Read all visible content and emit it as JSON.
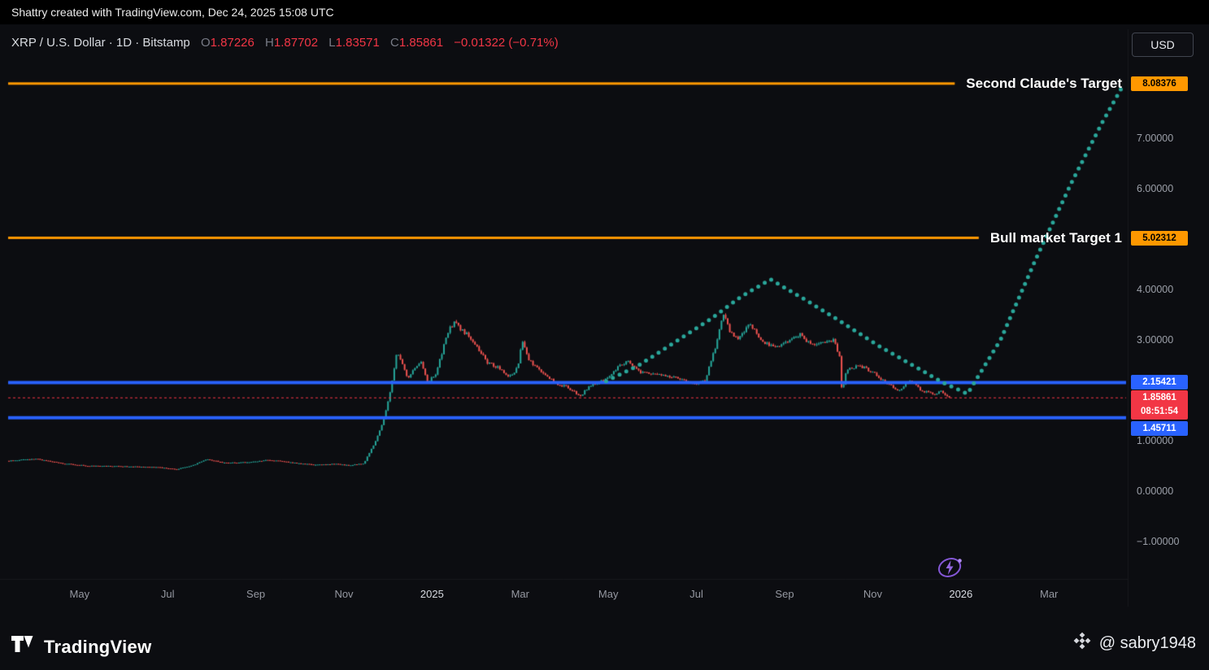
{
  "attribution": "Shattry created with TradingView.com, Dec 24, 2025 15:08 UTC",
  "header": {
    "symbol_line": "XRP / U.S. Dollar · 1D · Bitstamp",
    "ohlc": {
      "o_label": "O",
      "o": "1.87226",
      "h_label": "H",
      "h": "1.87702",
      "l_label": "L",
      "l": "1.83571",
      "c_label": "C",
      "c": "1.85861"
    },
    "change": "−0.01322 (−0.71%)",
    "currency_button": "USD"
  },
  "footer": {
    "logo_text": "TradingView",
    "credit": "@ sabry1948"
  },
  "chart_data": {
    "type": "candlestick",
    "symbol": "XRP/USD",
    "interval": "1D",
    "exchange": "Bitstamp",
    "x_unit": "months since 2024-04-01",
    "x_ticks": [
      {
        "label": "May",
        "t": 1,
        "major": false
      },
      {
        "label": "Jul",
        "t": 3,
        "major": false
      },
      {
        "label": "Sep",
        "t": 5,
        "major": false
      },
      {
        "label": "Nov",
        "t": 7,
        "major": false
      },
      {
        "label": "2025",
        "t": 9,
        "major": true
      },
      {
        "label": "Mar",
        "t": 11,
        "major": false
      },
      {
        "label": "May",
        "t": 13,
        "major": false
      },
      {
        "label": "Jul",
        "t": 15,
        "major": false
      },
      {
        "label": "Sep",
        "t": 17,
        "major": false
      },
      {
        "label": "Nov",
        "t": 19,
        "major": false
      },
      {
        "label": "2026",
        "t": 21,
        "major": true
      },
      {
        "label": "Mar",
        "t": 23,
        "major": false
      }
    ],
    "y_ticks": [
      {
        "label": "7.00000",
        "price": 7
      },
      {
        "label": "6.00000",
        "price": 6
      },
      {
        "label": "4.00000",
        "price": 4
      },
      {
        "label": "3.00000",
        "price": 3
      },
      {
        "label": "1.00000",
        "price": 1
      },
      {
        "label": "0.00000",
        "price": 0
      },
      {
        "label": "−1.00000",
        "price": -1
      }
    ],
    "levels": [
      {
        "name": "Second Claude's Target",
        "price": 8.08376,
        "label": "8.08376",
        "color": "#ff9800",
        "text_color": "#000000",
        "width": 3
      },
      {
        "name": "Bull market Target 1",
        "price": 5.02312,
        "label": "5.02312",
        "color": "#ff9800",
        "text_color": "#000000",
        "width": 3
      },
      {
        "name": "",
        "price": 2.15421,
        "label": "2.15421",
        "color": "#2962ff",
        "text_color": "#ffffff",
        "width": 4
      },
      {
        "name": "",
        "price": 1.45711,
        "label": "1.45711",
        "color": "#2962ff",
        "text_color": "#ffffff",
        "width": 4
      }
    ],
    "last_price": {
      "label": "1.85861",
      "price": 1.85861,
      "countdown": "08:51:54"
    },
    "price_path": [
      [
        -0.6,
        0.6
      ],
      [
        0.0,
        0.64
      ],
      [
        0.6,
        0.55
      ],
      [
        1.2,
        0.5
      ],
      [
        2.0,
        0.49
      ],
      [
        2.8,
        0.47
      ],
      [
        3.2,
        0.43
      ],
      [
        3.6,
        0.52
      ],
      [
        3.9,
        0.63
      ],
      [
        4.3,
        0.56
      ],
      [
        4.8,
        0.57
      ],
      [
        5.3,
        0.62
      ],
      [
        5.8,
        0.57
      ],
      [
        6.3,
        0.52
      ],
      [
        6.8,
        0.54
      ],
      [
        7.1,
        0.51
      ],
      [
        7.45,
        0.55
      ],
      [
        7.7,
        0.95
      ],
      [
        7.9,
        1.4
      ],
      [
        8.05,
        1.95
      ],
      [
        8.2,
        2.75
      ],
      [
        8.3,
        2.55
      ],
      [
        8.45,
        2.25
      ],
      [
        8.6,
        2.45
      ],
      [
        8.75,
        2.6
      ],
      [
        8.9,
        2.15
      ],
      [
        9.1,
        2.35
      ],
      [
        9.35,
        3.15
      ],
      [
        9.5,
        3.35
      ],
      [
        9.65,
        3.2
      ],
      [
        9.8,
        3.1
      ],
      [
        10.0,
        2.9
      ],
      [
        10.25,
        2.55
      ],
      [
        10.5,
        2.45
      ],
      [
        10.75,
        2.25
      ],
      [
        10.95,
        2.45
      ],
      [
        11.05,
        3.0
      ],
      [
        11.2,
        2.6
      ],
      [
        11.45,
        2.4
      ],
      [
        11.8,
        2.15
      ],
      [
        12.1,
        2.05
      ],
      [
        12.35,
        1.88
      ],
      [
        12.6,
        2.1
      ],
      [
        12.9,
        2.2
      ],
      [
        13.2,
        2.45
      ],
      [
        13.45,
        2.6
      ],
      [
        13.75,
        2.35
      ],
      [
        14.1,
        2.3
      ],
      [
        14.5,
        2.28
      ],
      [
        14.9,
        2.12
      ],
      [
        15.2,
        2.2
      ],
      [
        15.45,
        2.9
      ],
      [
        15.6,
        3.55
      ],
      [
        15.75,
        3.2
      ],
      [
        15.95,
        3.0
      ],
      [
        16.2,
        3.35
      ],
      [
        16.5,
        2.95
      ],
      [
        16.8,
        2.85
      ],
      [
        17.1,
        3.0
      ],
      [
        17.35,
        3.1
      ],
      [
        17.6,
        2.9
      ],
      [
        17.85,
        2.95
      ],
      [
        18.1,
        3.0
      ],
      [
        18.25,
        2.7
      ],
      [
        18.3,
        1.95
      ],
      [
        18.4,
        2.4
      ],
      [
        18.7,
        2.5
      ],
      [
        19.0,
        2.35
      ],
      [
        19.3,
        2.15
      ],
      [
        19.6,
        2.0
      ],
      [
        19.85,
        2.2
      ],
      [
        20.1,
        2.0
      ],
      [
        20.35,
        1.92
      ],
      [
        20.55,
        1.97
      ],
      [
        20.78,
        1.86
      ]
    ],
    "projection": {
      "name": "projected-path",
      "style": "dotted",
      "points": [
        [
          12.95,
          2.18
        ],
        [
          13.7,
          2.5
        ],
        [
          14.5,
          2.95
        ],
        [
          15.3,
          3.4
        ],
        [
          16.0,
          3.85
        ],
        [
          16.68,
          4.2
        ],
        [
          17.5,
          3.78
        ],
        [
          18.3,
          3.35
        ],
        [
          19.1,
          2.9
        ],
        [
          19.9,
          2.5
        ],
        [
          20.6,
          2.15
        ],
        [
          21.15,
          1.93
        ],
        [
          21.9,
          3.0
        ],
        [
          22.7,
          4.6
        ],
        [
          23.5,
          6.1
        ],
        [
          24.2,
          7.3
        ],
        [
          24.68,
          8.05
        ]
      ]
    },
    "colors": {
      "up": "#26a69a",
      "down": "#ef5350",
      "projection": "#2aa79b",
      "level_orange": "#ff9800",
      "level_blue": "#2962ff",
      "last_price": "#f23645"
    }
  }
}
